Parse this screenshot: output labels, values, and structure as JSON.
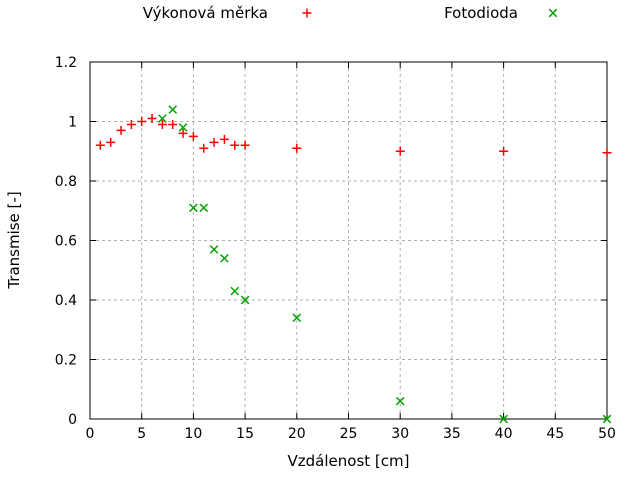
{
  "chart_data": {
    "type": "scatter",
    "title": "",
    "xlabel": "Vzdálenost [cm]",
    "ylabel": "Transmise [-]",
    "xlim": [
      0,
      50
    ],
    "ylim": [
      0,
      1.2
    ],
    "x_ticks": [
      0,
      5,
      10,
      15,
      20,
      25,
      30,
      35,
      40,
      45,
      50
    ],
    "x_tick_labels": [
      "0",
      "5",
      "10",
      "15",
      "20",
      "25",
      "30",
      "35",
      "40",
      "45",
      "50"
    ],
    "y_ticks": [
      0,
      0.2,
      0.4,
      0.6,
      0.8,
      1,
      1.2
    ],
    "y_tick_labels": [
      "0",
      "0.2",
      "0.4",
      "0.6",
      "0.8",
      "1",
      "1.2"
    ],
    "grid": true,
    "legend_position": "above-plot",
    "grid_color": "#b0b0b0",
    "border_color": "#000000",
    "series": [
      {
        "name": "Výkonová měrka",
        "marker": "plus",
        "color": "#ff0000",
        "points": [
          [
            1,
            0.92
          ],
          [
            2,
            0.93
          ],
          [
            3,
            0.97
          ],
          [
            4,
            0.99
          ],
          [
            5,
            1.0
          ],
          [
            6,
            1.01
          ],
          [
            7,
            0.99
          ],
          [
            8,
            0.99
          ],
          [
            9,
            0.96
          ],
          [
            10,
            0.95
          ],
          [
            11,
            0.91
          ],
          [
            12,
            0.93
          ],
          [
            13,
            0.94
          ],
          [
            14,
            0.92
          ],
          [
            15,
            0.92
          ],
          [
            20,
            0.91
          ],
          [
            30,
            0.9
          ],
          [
            40,
            0.9
          ],
          [
            50,
            0.895
          ]
        ]
      },
      {
        "name": "Fotodioda",
        "marker": "times",
        "color": "#00a400",
        "points": [
          [
            7,
            1.01
          ],
          [
            8,
            1.04
          ],
          [
            9,
            0.98
          ],
          [
            10,
            0.71
          ],
          [
            11,
            0.71
          ],
          [
            12,
            0.57
          ],
          [
            13,
            0.54
          ],
          [
            14,
            0.43
          ],
          [
            15,
            0.4
          ],
          [
            20,
            0.34
          ],
          [
            30,
            0.06
          ],
          [
            40,
            0.0
          ],
          [
            50,
            0.0
          ]
        ]
      }
    ]
  }
}
